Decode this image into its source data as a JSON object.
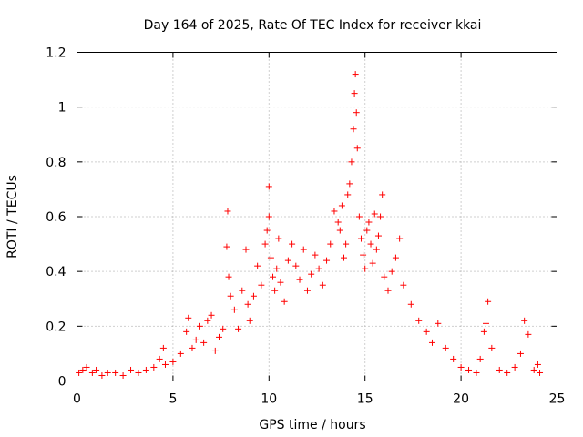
{
  "chart_data": {
    "type": "scatter",
    "title": "Day 164 of 2025, Rate Of TEC Index for receiver kkai",
    "xlabel": "GPS time / hours",
    "ylabel": "ROTI / TECUs",
    "xlim": [
      0,
      25
    ],
    "ylim": [
      0,
      1.2
    ],
    "xticks": [
      0,
      5,
      10,
      15,
      20,
      25
    ],
    "xtick_labels": [
      "0",
      "5",
      "10",
      "15",
      "20",
      "25"
    ],
    "yticks": [
      0,
      0.2,
      0.4,
      0.6,
      0.8,
      1,
      1.2
    ],
    "ytick_labels": [
      "0",
      "0.2",
      "0.4",
      "0.6",
      "0.8",
      "1",
      "1.2"
    ],
    "grid": true,
    "marker": "plus",
    "marker_color": "#ff0000",
    "series": [
      {
        "x": [
          0.1,
          0.3,
          0.5,
          0.8,
          1.0,
          1.3,
          1.6,
          2.0,
          2.4,
          2.8,
          3.2,
          3.6,
          4.0,
          4.3,
          4.5,
          4.6,
          5.0,
          5.4,
          5.7,
          5.8,
          6.0,
          6.2,
          6.4,
          6.6,
          6.8,
          7.0,
          7.2,
          7.4,
          7.6,
          7.8,
          7.85,
          7.9,
          8.0,
          8.2,
          8.4,
          8.6,
          8.8,
          8.9,
          9.0,
          9.2,
          9.4,
          9.6,
          9.8,
          9.9,
          10.0,
          10.0,
          10.1,
          10.2,
          10.3,
          10.4,
          10.5,
          10.6,
          10.8,
          11.0,
          11.2,
          11.4,
          11.6,
          11.8,
          12.0,
          12.2,
          12.4,
          12.6,
          12.8,
          13.0,
          13.2,
          13.4,
          13.6,
          13.7,
          13.8,
          13.9,
          14.0,
          14.1,
          14.2,
          14.3,
          14.4,
          14.45,
          14.5,
          14.55,
          14.6,
          14.7,
          14.8,
          14.9,
          15.0,
          15.1,
          15.2,
          15.3,
          15.4,
          15.5,
          15.6,
          15.7,
          15.8,
          15.9,
          16.0,
          16.2,
          16.4,
          16.6,
          16.8,
          17.0,
          17.4,
          17.8,
          18.2,
          18.5,
          18.8,
          19.2,
          19.6,
          20.0,
          20.4,
          20.8,
          21.0,
          21.2,
          21.3,
          21.4,
          21.6,
          22.0,
          22.4,
          22.8,
          23.1,
          23.3,
          23.5,
          23.8,
          24.0,
          24.1
        ],
        "y": [
          0.03,
          0.04,
          0.05,
          0.03,
          0.04,
          0.02,
          0.03,
          0.03,
          0.02,
          0.04,
          0.03,
          0.04,
          0.05,
          0.08,
          0.12,
          0.06,
          0.07,
          0.1,
          0.18,
          0.23,
          0.12,
          0.15,
          0.2,
          0.14,
          0.22,
          0.24,
          0.11,
          0.16,
          0.19,
          0.49,
          0.62,
          0.38,
          0.31,
          0.26,
          0.19,
          0.33,
          0.48,
          0.28,
          0.22,
          0.31,
          0.42,
          0.35,
          0.5,
          0.55,
          0.71,
          0.6,
          0.45,
          0.38,
          0.33,
          0.41,
          0.52,
          0.36,
          0.29,
          0.44,
          0.5,
          0.42,
          0.37,
          0.48,
          0.33,
          0.39,
          0.46,
          0.41,
          0.35,
          0.44,
          0.5,
          0.62,
          0.58,
          0.55,
          0.64,
          0.45,
          0.5,
          0.68,
          0.72,
          0.8,
          0.92,
          1.05,
          1.12,
          0.98,
          0.85,
          0.6,
          0.52,
          0.46,
          0.41,
          0.55,
          0.58,
          0.5,
          0.43,
          0.61,
          0.48,
          0.53,
          0.6,
          0.68,
          0.38,
          0.33,
          0.4,
          0.45,
          0.52,
          0.35,
          0.28,
          0.22,
          0.18,
          0.14,
          0.21,
          0.12,
          0.08,
          0.05,
          0.04,
          0.03,
          0.08,
          0.18,
          0.21,
          0.29,
          0.12,
          0.04,
          0.03,
          0.05,
          0.1,
          0.22,
          0.17,
          0.04,
          0.06,
          0.03
        ]
      }
    ]
  }
}
